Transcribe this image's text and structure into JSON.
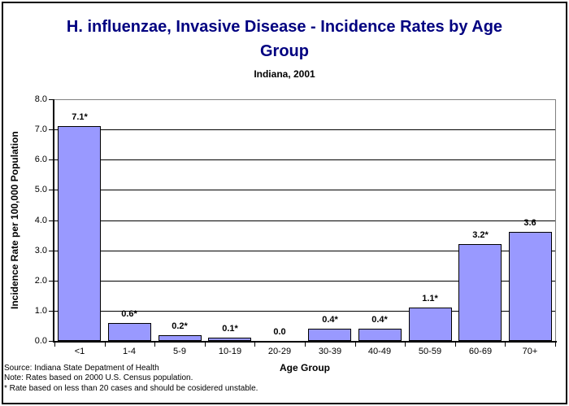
{
  "header": {
    "title_line1": "H. influenzae, Invasive Disease - Incidence Rates by Age",
    "title_line2": "Group",
    "subtitle": "Indiana, 2001"
  },
  "footnotes": {
    "source": "Source: Indiana State Depatment of Health",
    "note": "Note: Rates based on 2000 U.S. Census population.",
    "asterisk": "* Rate based on less than 20 cases and should be cosidered unstable."
  },
  "colors": {
    "title": "#000080",
    "bar_fill": "#9999FF",
    "bar_border": "#000000",
    "gridline": "#000000",
    "plot_border": "#808080",
    "background": "#FFFFFF",
    "outer_border": "#000000"
  },
  "chart_data": {
    "type": "bar",
    "title": "H. influenzae, Invasive Disease - Incidence Rates by Age Group",
    "subtitle": "Indiana, 2001",
    "categories": [
      "<1",
      "1-4",
      "5-9",
      "10-19",
      "20-29",
      "30-39",
      "40-49",
      "50-59",
      "60-69",
      "70+"
    ],
    "values": [
      7.1,
      0.6,
      0.2,
      0.1,
      0.0,
      0.4,
      0.4,
      1.1,
      3.2,
      3.6
    ],
    "data_labels": [
      "7.1*",
      "0.6*",
      "0.2*",
      "0.1*",
      "0.0",
      "0.4*",
      "0.4*",
      "1.1*",
      "3.2*",
      "3.6"
    ],
    "xlabel": "Age Group",
    "ylabel": "Incidence Rate per 100,000 Population",
    "ylim": [
      0,
      8
    ],
    "ytick_step": 1.0,
    "ytick_labels": [
      "0.0",
      "1.0",
      "2.0",
      "3.0",
      "4.0",
      "5.0",
      "6.0",
      "7.0",
      "8.0"
    ],
    "grid": true,
    "legend": "none"
  }
}
